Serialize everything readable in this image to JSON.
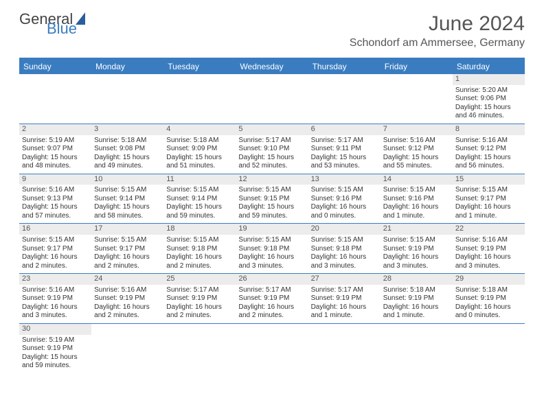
{
  "logo": {
    "text1": "General",
    "text2": "Blue"
  },
  "title": "June 2024",
  "location": "Schondorf am Ammersee, Germany",
  "dayNames": [
    "Sunday",
    "Monday",
    "Tuesday",
    "Wednesday",
    "Thursday",
    "Friday",
    "Saturday"
  ],
  "colors": {
    "header_bg": "#3a7cc0",
    "daynum_bg": "#ececec",
    "text": "#333333",
    "title": "#555555"
  },
  "weeks": [
    [
      {
        "empty": true
      },
      {
        "empty": true
      },
      {
        "empty": true
      },
      {
        "empty": true
      },
      {
        "empty": true
      },
      {
        "empty": true
      },
      {
        "d": "1",
        "sr": "Sunrise: 5:20 AM",
        "ss": "Sunset: 9:06 PM",
        "dl1": "Daylight: 15 hours",
        "dl2": "and 46 minutes."
      }
    ],
    [
      {
        "d": "2",
        "sr": "Sunrise: 5:19 AM",
        "ss": "Sunset: 9:07 PM",
        "dl1": "Daylight: 15 hours",
        "dl2": "and 48 minutes."
      },
      {
        "d": "3",
        "sr": "Sunrise: 5:18 AM",
        "ss": "Sunset: 9:08 PM",
        "dl1": "Daylight: 15 hours",
        "dl2": "and 49 minutes."
      },
      {
        "d": "4",
        "sr": "Sunrise: 5:18 AM",
        "ss": "Sunset: 9:09 PM",
        "dl1": "Daylight: 15 hours",
        "dl2": "and 51 minutes."
      },
      {
        "d": "5",
        "sr": "Sunrise: 5:17 AM",
        "ss": "Sunset: 9:10 PM",
        "dl1": "Daylight: 15 hours",
        "dl2": "and 52 minutes."
      },
      {
        "d": "6",
        "sr": "Sunrise: 5:17 AM",
        "ss": "Sunset: 9:11 PM",
        "dl1": "Daylight: 15 hours",
        "dl2": "and 53 minutes."
      },
      {
        "d": "7",
        "sr": "Sunrise: 5:16 AM",
        "ss": "Sunset: 9:12 PM",
        "dl1": "Daylight: 15 hours",
        "dl2": "and 55 minutes."
      },
      {
        "d": "8",
        "sr": "Sunrise: 5:16 AM",
        "ss": "Sunset: 9:12 PM",
        "dl1": "Daylight: 15 hours",
        "dl2": "and 56 minutes."
      }
    ],
    [
      {
        "d": "9",
        "sr": "Sunrise: 5:16 AM",
        "ss": "Sunset: 9:13 PM",
        "dl1": "Daylight: 15 hours",
        "dl2": "and 57 minutes."
      },
      {
        "d": "10",
        "sr": "Sunrise: 5:15 AM",
        "ss": "Sunset: 9:14 PM",
        "dl1": "Daylight: 15 hours",
        "dl2": "and 58 minutes."
      },
      {
        "d": "11",
        "sr": "Sunrise: 5:15 AM",
        "ss": "Sunset: 9:14 PM",
        "dl1": "Daylight: 15 hours",
        "dl2": "and 59 minutes."
      },
      {
        "d": "12",
        "sr": "Sunrise: 5:15 AM",
        "ss": "Sunset: 9:15 PM",
        "dl1": "Daylight: 15 hours",
        "dl2": "and 59 minutes."
      },
      {
        "d": "13",
        "sr": "Sunrise: 5:15 AM",
        "ss": "Sunset: 9:16 PM",
        "dl1": "Daylight: 16 hours",
        "dl2": "and 0 minutes."
      },
      {
        "d": "14",
        "sr": "Sunrise: 5:15 AM",
        "ss": "Sunset: 9:16 PM",
        "dl1": "Daylight: 16 hours",
        "dl2": "and 1 minute."
      },
      {
        "d": "15",
        "sr": "Sunrise: 5:15 AM",
        "ss": "Sunset: 9:17 PM",
        "dl1": "Daylight: 16 hours",
        "dl2": "and 1 minute."
      }
    ],
    [
      {
        "d": "16",
        "sr": "Sunrise: 5:15 AM",
        "ss": "Sunset: 9:17 PM",
        "dl1": "Daylight: 16 hours",
        "dl2": "and 2 minutes."
      },
      {
        "d": "17",
        "sr": "Sunrise: 5:15 AM",
        "ss": "Sunset: 9:17 PM",
        "dl1": "Daylight: 16 hours",
        "dl2": "and 2 minutes."
      },
      {
        "d": "18",
        "sr": "Sunrise: 5:15 AM",
        "ss": "Sunset: 9:18 PM",
        "dl1": "Daylight: 16 hours",
        "dl2": "and 2 minutes."
      },
      {
        "d": "19",
        "sr": "Sunrise: 5:15 AM",
        "ss": "Sunset: 9:18 PM",
        "dl1": "Daylight: 16 hours",
        "dl2": "and 3 minutes."
      },
      {
        "d": "20",
        "sr": "Sunrise: 5:15 AM",
        "ss": "Sunset: 9:18 PM",
        "dl1": "Daylight: 16 hours",
        "dl2": "and 3 minutes."
      },
      {
        "d": "21",
        "sr": "Sunrise: 5:15 AM",
        "ss": "Sunset: 9:19 PM",
        "dl1": "Daylight: 16 hours",
        "dl2": "and 3 minutes."
      },
      {
        "d": "22",
        "sr": "Sunrise: 5:16 AM",
        "ss": "Sunset: 9:19 PM",
        "dl1": "Daylight: 16 hours",
        "dl2": "and 3 minutes."
      }
    ],
    [
      {
        "d": "23",
        "sr": "Sunrise: 5:16 AM",
        "ss": "Sunset: 9:19 PM",
        "dl1": "Daylight: 16 hours",
        "dl2": "and 3 minutes."
      },
      {
        "d": "24",
        "sr": "Sunrise: 5:16 AM",
        "ss": "Sunset: 9:19 PM",
        "dl1": "Daylight: 16 hours",
        "dl2": "and 2 minutes."
      },
      {
        "d": "25",
        "sr": "Sunrise: 5:17 AM",
        "ss": "Sunset: 9:19 PM",
        "dl1": "Daylight: 16 hours",
        "dl2": "and 2 minutes."
      },
      {
        "d": "26",
        "sr": "Sunrise: 5:17 AM",
        "ss": "Sunset: 9:19 PM",
        "dl1": "Daylight: 16 hours",
        "dl2": "and 2 minutes."
      },
      {
        "d": "27",
        "sr": "Sunrise: 5:17 AM",
        "ss": "Sunset: 9:19 PM",
        "dl1": "Daylight: 16 hours",
        "dl2": "and 1 minute."
      },
      {
        "d": "28",
        "sr": "Sunrise: 5:18 AM",
        "ss": "Sunset: 9:19 PM",
        "dl1": "Daylight: 16 hours",
        "dl2": "and 1 minute."
      },
      {
        "d": "29",
        "sr": "Sunrise: 5:18 AM",
        "ss": "Sunset: 9:19 PM",
        "dl1": "Daylight: 16 hours",
        "dl2": "and 0 minutes."
      }
    ],
    [
      {
        "d": "30",
        "sr": "Sunrise: 5:19 AM",
        "ss": "Sunset: 9:19 PM",
        "dl1": "Daylight: 15 hours",
        "dl2": "and 59 minutes."
      },
      {
        "empty": true
      },
      {
        "empty": true
      },
      {
        "empty": true
      },
      {
        "empty": true
      },
      {
        "empty": true
      },
      {
        "empty": true
      }
    ]
  ]
}
